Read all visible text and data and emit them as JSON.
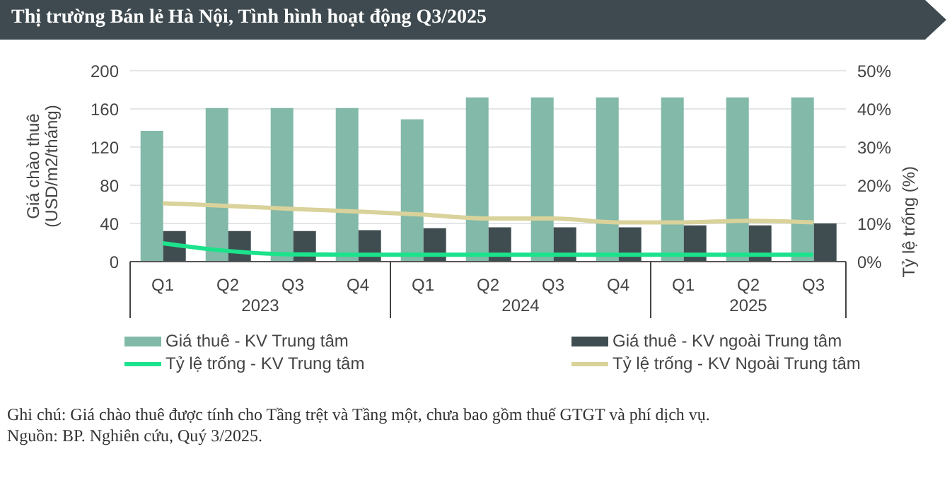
{
  "chart_data": {
    "type": "bar",
    "title": "Thị trường Bán lẻ Hà Nội, Tình hình hoạt động Q3/2025",
    "categories": [
      "Q1",
      "Q2",
      "Q3",
      "Q4",
      "Q1",
      "Q2",
      "Q3",
      "Q4",
      "Q1",
      "Q2",
      "Q3"
    ],
    "series": [
      {
        "name": "Giá thuê - KV Trung tâm",
        "color": "#82b9a9",
        "values": [
          137,
          161,
          161,
          161,
          149,
          172,
          172,
          172,
          172,
          172,
          172
        ]
      },
      {
        "name": "Giá thuê - KV ngoài Trung tâm",
        "color": "#3f4d51",
        "values": [
          32,
          32,
          32,
          33,
          35,
          36,
          36,
          36,
          38,
          38,
          40
        ]
      },
      {
        "name": "Tỷ lệ trống - KV Trung tâm",
        "type": "line",
        "axis": "y2",
        "color": "#1de28c",
        "values": [
          4.8,
          2.8,
          1.9,
          1.8,
          1.8,
          1.8,
          1.8,
          1.8,
          1.8,
          1.8,
          1.8
        ]
      },
      {
        "name": "Tỷ lệ trống - KV Ngoài Trung tâm",
        "type": "line",
        "axis": "y2",
        "color": "#d9d29a",
        "values": [
          15.3,
          14.6,
          13.8,
          13.1,
          12.3,
          11.3,
          11.3,
          10.3,
          10.3,
          10.7,
          10.3
        ]
      }
    ],
    "ylabel": "Giá chào thuê\n(USD/m2/tháng)",
    "y2label": "Tỷ lệ trống (%)",
    "ylim": [
      0,
      200
    ],
    "yticks": [
      0,
      40,
      80,
      120,
      160,
      200
    ],
    "y2lim": [
      0,
      50
    ],
    "y2ticks": [
      {
        "value": 0,
        "label": "0%"
      },
      {
        "value": 10,
        "label": "10%"
      },
      {
        "value": 20,
        "label": "20%"
      },
      {
        "value": 30,
        "label": "30%"
      },
      {
        "value": 40,
        "label": "40%"
      },
      {
        "value": 50,
        "label": "50%"
      }
    ],
    "grid": "y",
    "legend": "bottom",
    "marker": "none",
    "line_style": "solid",
    "annotations": [
      "2023",
      "2024",
      "2025",
      "Ghi chú: Giá chào thuê được tính cho Tầng trệt và Tầng một, chưa bao gồm thuế GTGT và phí dịch vụ.",
      "Nguồn: BP. Nghiên cứu, Quý 3/2025."
    ]
  }
}
